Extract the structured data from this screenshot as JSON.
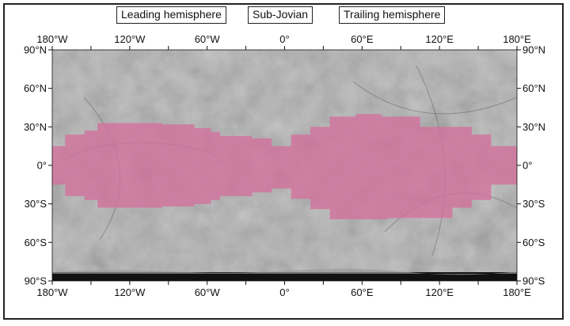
{
  "hemisphere_labels": {
    "leading": "Leading hemisphere",
    "sub_jovian": "Sub-Jovian",
    "trailing": "Trailing hemisphere"
  },
  "axes": {
    "longitude_ticks": [
      "180°W",
      "120°W",
      "60°W",
      "0°",
      "60°E",
      "120°E",
      "180°E"
    ],
    "longitude_values": [
      -180,
      -120,
      -60,
      0,
      60,
      120,
      180
    ],
    "latitude_ticks": [
      "90°N",
      "60°N",
      "30°N",
      "0°",
      "30°S",
      "60°S",
      "90°S"
    ],
    "latitude_values": [
      90,
      60,
      30,
      0,
      -30,
      -60,
      -90
    ]
  },
  "colors": {
    "highlight": "#d4709c",
    "surface_base": "#a9a9a9",
    "frame": "#222222"
  },
  "highlight_region": {
    "description_lon_lat_polygon_west_to_east_upper": [
      [
        -180,
        15
      ],
      [
        -170,
        15
      ],
      [
        -170,
        24
      ],
      [
        -155,
        24
      ],
      [
        -155,
        27
      ],
      [
        -145,
        27
      ],
      [
        -145,
        33
      ],
      [
        -95,
        33
      ],
      [
        -95,
        32
      ],
      [
        -70,
        32
      ],
      [
        -70,
        29
      ],
      [
        -57,
        29
      ],
      [
        -57,
        26
      ],
      [
        -50,
        26
      ],
      [
        -50,
        23
      ],
      [
        -37,
        23
      ],
      [
        -37,
        23
      ],
      [
        -25,
        23
      ],
      [
        -25,
        21
      ],
      [
        -10,
        21
      ],
      [
        -10,
        15
      ],
      [
        5,
        15
      ],
      [
        5,
        24
      ],
      [
        20,
        24
      ],
      [
        20,
        30
      ],
      [
        35,
        30
      ],
      [
        35,
        38
      ],
      [
        55,
        38
      ],
      [
        55,
        40
      ],
      [
        75,
        40
      ],
      [
        75,
        38
      ],
      [
        105,
        38
      ],
      [
        105,
        30
      ],
      [
        145,
        30
      ],
      [
        145,
        24
      ],
      [
        160,
        24
      ],
      [
        160,
        15
      ],
      [
        180,
        15
      ]
    ],
    "description_lon_lat_polygon_east_to_west_lower": [
      [
        180,
        -15
      ],
      [
        160,
        -15
      ],
      [
        160,
        -27
      ],
      [
        145,
        -27
      ],
      [
        145,
        -33
      ],
      [
        130,
        -33
      ],
      [
        130,
        -41
      ],
      [
        80,
        -41
      ],
      [
        80,
        -42
      ],
      [
        35,
        -42
      ],
      [
        35,
        -34
      ],
      [
        20,
        -34
      ],
      [
        20,
        -26
      ],
      [
        5,
        -26
      ],
      [
        5,
        -18
      ],
      [
        -10,
        -18
      ],
      [
        -10,
        -21
      ],
      [
        -25,
        -21
      ],
      [
        -25,
        -24
      ],
      [
        -50,
        -24
      ],
      [
        -50,
        -27
      ],
      [
        -57,
        -27
      ],
      [
        -57,
        -30
      ],
      [
        -70,
        -30
      ],
      [
        -70,
        -32
      ],
      [
        -95,
        -32
      ],
      [
        -95,
        -33
      ],
      [
        -145,
        -33
      ],
      [
        -145,
        -27
      ],
      [
        -155,
        -27
      ],
      [
        -155,
        -24
      ],
      [
        -170,
        -24
      ],
      [
        -170,
        -15
      ],
      [
        -180,
        -15
      ]
    ]
  }
}
